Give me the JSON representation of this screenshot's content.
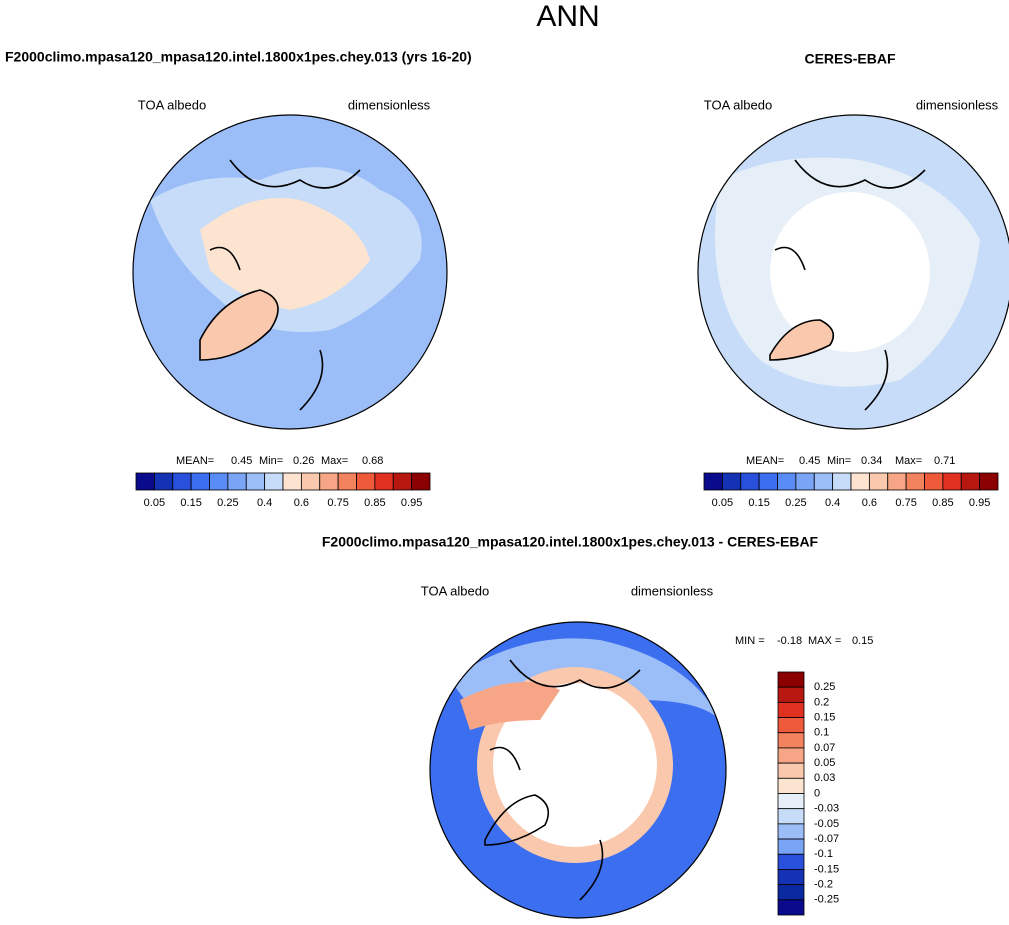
{
  "title": "ANN",
  "panels": [
    {
      "title": "F2000climo.mpasa120_mpasa120.intel.1800x1pes.chey.013 (yrs 16-20)",
      "left_label": "TOA albedo",
      "right_label": "dimensionless",
      "stats": [
        {
          "label": "MEAN=",
          "value": 0.45
        },
        {
          "label": "Min=",
          "value": 0.26
        },
        {
          "label": "Max=",
          "value": 0.68
        }
      ]
    },
    {
      "title": "CERES-EBAF",
      "left_label": "TOA albedo",
      "right_label": "dimensionless",
      "stats": [
        {
          "label": "MEAN=",
          "value": 0.45
        },
        {
          "label": "Min=",
          "value": 0.34
        },
        {
          "label": "Max=",
          "value": 0.71
        }
      ]
    },
    {
      "title": "F2000climo.mpasa120_mpasa120.intel.1800x1pes.chey.013 - CERES-EBAF",
      "left_label": "TOA albedo",
      "right_label": "dimensionless",
      "stats": [
        {
          "label": "MIN =",
          "value": -0.18
        },
        {
          "label": "MAX =",
          "value": 0.15
        }
      ]
    }
  ],
  "colorbars": [
    {
      "labels": [
        0.05,
        0.15,
        0.25,
        0.4,
        0.6,
        0.75,
        0.85,
        0.95
      ],
      "colors": [
        "#0a0a8c",
        "#1432b4",
        "#2850dc",
        "#3c6ef0",
        "#5a8cf5",
        "#7aa5f7",
        "#9cbef8",
        "#c6dcf8",
        "#fde4d0",
        "#f9c8ad",
        "#f6a586",
        "#f3825f",
        "#ef5a3a",
        "#e03020",
        "#b81810",
        "#8b0000"
      ]
    },
    {
      "labels": [
        0.05,
        0.15,
        0.25,
        0.4,
        0.6,
        0.75,
        0.85,
        0.95
      ],
      "colors": [
        "#0a0a8c",
        "#1432b4",
        "#2850dc",
        "#3c6ef0",
        "#5a8cf5",
        "#7aa5f7",
        "#9cbef8",
        "#c6dcf8",
        "#fde4d0",
        "#f9c8ad",
        "#f6a586",
        "#f3825f",
        "#ef5a3a",
        "#e03020",
        "#b81810",
        "#8b0000"
      ]
    },
    {
      "labels": [
        0.25,
        0.2,
        0.15,
        0.1,
        0.07,
        0.05,
        0.03,
        0,
        -0.03,
        -0.05,
        -0.07,
        -0.1,
        -0.15,
        -0.2,
        -0.25
      ],
      "colors": [
        "#8b0000",
        "#b81810",
        "#e03020",
        "#ef5a3a",
        "#f3825f",
        "#f6a586",
        "#f9c8ad",
        "#fde4d0",
        "#e6eef8",
        "#c6dcf8",
        "#9cbef8",
        "#7aa5f7",
        "#2850dc",
        "#1432b4",
        "#0a28a0",
        "#0a0a8c"
      ]
    }
  ]
}
